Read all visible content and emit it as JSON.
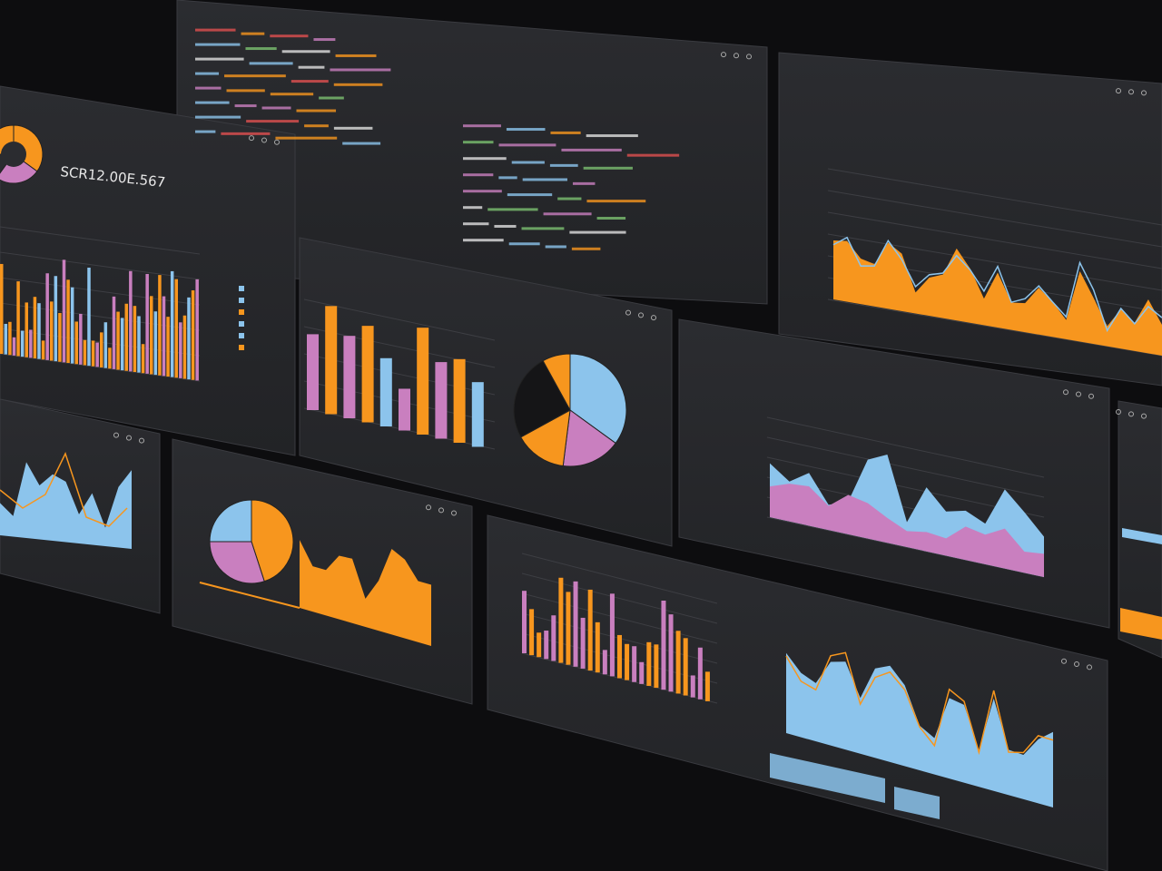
{
  "header": {
    "metric": "SCR12.00E.567"
  }
}
